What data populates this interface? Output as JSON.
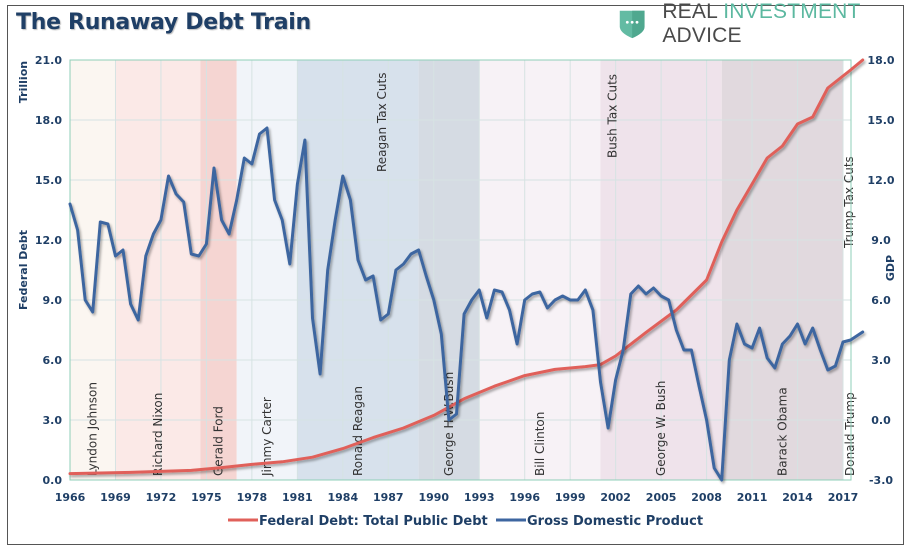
{
  "header": {
    "title": "The Runaway Debt Train",
    "brand": {
      "part1": "REAL ",
      "part2": "INVESTMENT",
      "part3": " ADVICE",
      "icon": "shield-icon",
      "color": "#5cb8a0"
    }
  },
  "chart_data": {
    "type": "line",
    "title": "The Runaway Debt Train",
    "xlabel": "",
    "ylabel_left": "Federal Debt",
    "ylabel_left_unit": "Trillion",
    "ylabel_right": "GDP",
    "xlim": [
      1966,
      2018.5
    ],
    "ylim_left": [
      0,
      21
    ],
    "ylim_right": [
      -3,
      18
    ],
    "x_ticks": [
      "1966",
      "1969",
      "1972",
      "1975",
      "1978",
      "1981",
      "1984",
      "1987",
      "1990",
      "1993",
      "1996",
      "1999",
      "2002",
      "2005",
      "2008",
      "2011",
      "2014",
      "2017"
    ],
    "y_ticks_left": [
      "0.0",
      "3.0",
      "6.0",
      "9.0",
      "12.0",
      "15.0",
      "18.0",
      "21.0"
    ],
    "y_ticks_right": [
      "-3.0",
      "0.0",
      "3.0",
      "6.0",
      "9.0",
      "12.0",
      "15.0",
      "18.0"
    ],
    "grid": true,
    "legend_position": "bottom",
    "series": [
      {
        "name": "Federal Debt: Total Public Debt",
        "axis": "left",
        "color": "#e0605a",
        "x": [
          1966,
          1968,
          1970,
          1972,
          1974,
          1976,
          1978,
          1980,
          1982,
          1984,
          1986,
          1988,
          1990,
          1992,
          1994,
          1996,
          1998,
          2000,
          2001,
          2002,
          2004,
          2006,
          2008,
          2009,
          2010,
          2011,
          2012,
          2013,
          2014,
          2015,
          2016,
          2017,
          2017.5,
          2018.3
        ],
        "values": [
          0.32,
          0.35,
          0.38,
          0.43,
          0.48,
          0.62,
          0.78,
          0.91,
          1.14,
          1.57,
          2.12,
          2.6,
          3.23,
          4.06,
          4.69,
          5.22,
          5.53,
          5.67,
          5.77,
          6.2,
          7.38,
          8.5,
          10.0,
          11.9,
          13.5,
          14.8,
          16.1,
          16.7,
          17.8,
          18.15,
          19.6,
          20.2,
          20.5,
          21.0
        ]
      },
      {
        "name": "Gross Domestic Product",
        "axis": "right",
        "color": "#3e66a0",
        "x": [
          1966,
          1966.5,
          1967,
          1967.5,
          1968,
          1968.5,
          1969,
          1969.5,
          1970,
          1970.5,
          1971,
          1971.5,
          1972,
          1972.5,
          1973,
          1973.5,
          1974,
          1974.5,
          1975,
          1975.5,
          1976,
          1976.5,
          1977,
          1977.5,
          1978,
          1978.5,
          1979,
          1979.5,
          1980,
          1980.5,
          1981,
          1981.5,
          1982,
          1982.5,
          1983,
          1983.5,
          1984,
          1984.5,
          1985,
          1985.5,
          1986,
          1986.5,
          1987,
          1987.5,
          1988,
          1988.5,
          1989,
          1989.5,
          1990,
          1990.5,
          1991,
          1991.5,
          1992,
          1992.5,
          1993,
          1993.5,
          1994,
          1994.5,
          1995,
          1995.5,
          1996,
          1996.5,
          1997,
          1997.5,
          1998,
          1998.5,
          1999,
          1999.5,
          2000,
          2000.5,
          2001,
          2001.5,
          2002,
          2002.5,
          2003,
          2003.5,
          2004,
          2004.5,
          2005,
          2005.5,
          2006,
          2006.5,
          2007,
          2007.5,
          2008,
          2008.5,
          2009,
          2009.5,
          2010,
          2010.5,
          2011,
          2011.5,
          2012,
          2012.5,
          2013,
          2013.5,
          2014,
          2014.5,
          2015,
          2015.5,
          2016,
          2016.5,
          2017,
          2017.5,
          2018.3
        ],
        "values": [
          10.8,
          9.5,
          6.0,
          5.4,
          9.9,
          9.8,
          8.2,
          8.5,
          5.8,
          5.0,
          8.2,
          9.3,
          10.0,
          12.2,
          11.3,
          10.9,
          8.3,
          8.2,
          8.8,
          12.6,
          10.0,
          9.3,
          11.0,
          13.1,
          12.8,
          14.3,
          14.6,
          11.0,
          10.0,
          7.8,
          11.8,
          14.0,
          5.1,
          2.3,
          7.5,
          10.0,
          12.2,
          11.0,
          8.0,
          7.0,
          7.2,
          5.0,
          5.3,
          7.5,
          7.8,
          8.3,
          8.5,
          7.2,
          6.0,
          4.3,
          0.0,
          0.3,
          5.3,
          6.0,
          6.5,
          5.1,
          6.5,
          6.4,
          5.5,
          3.8,
          6.0,
          6.3,
          6.4,
          5.6,
          6.0,
          6.2,
          6.0,
          6.0,
          6.5,
          5.5,
          1.9,
          -0.4,
          2.0,
          3.5,
          6.3,
          6.7,
          6.3,
          6.6,
          6.2,
          6.0,
          4.5,
          3.5,
          3.5,
          1.7,
          0.0,
          -2.4,
          -3.0,
          3.0,
          4.8,
          3.8,
          3.6,
          4.6,
          3.1,
          2.6,
          3.8,
          4.2,
          4.8,
          3.8,
          4.6,
          3.5,
          2.5,
          2.7,
          3.9,
          4.0,
          4.4
        ]
      }
    ],
    "eras": [
      {
        "name": "Lyndon Johnson",
        "start": 1966,
        "end": 1969,
        "color": "#fbf6f1"
      },
      {
        "name": "Richard Nixon",
        "start": 1969,
        "end": 1974.6,
        "color": "#fbe9e7"
      },
      {
        "name": "Gerald Ford",
        "start": 1974.6,
        "end": 1977,
        "color": "#f5d5d2"
      },
      {
        "name": "Jimmy Carter",
        "start": 1977,
        "end": 1981,
        "color": "#f1f4f9"
      },
      {
        "name": "Ronald Reagan",
        "start": 1981,
        "end": 1989,
        "color": "#d7e1ec"
      },
      {
        "name": "George H.W.Bush",
        "start": 1989,
        "end": 1993,
        "color": "#d5dbe3"
      },
      {
        "name": "Bill Clinton",
        "start": 1993,
        "end": 2001,
        "color": "#f7f2f6"
      },
      {
        "name": "George W. Bush",
        "start": 2001,
        "end": 2009,
        "color": "#efe3eb"
      },
      {
        "name": "Barack Obama",
        "start": 2009,
        "end": 2017,
        "color": "#e1d9de"
      },
      {
        "name": "Donald Trump",
        "start": 2017,
        "end": 2018.5,
        "color": "#ffffff"
      }
    ],
    "annotations": [
      {
        "text": "Reagan Tax Cuts",
        "x": 1986.6
      },
      {
        "text": "Bush Tax Cuts",
        "x": 2001.8
      },
      {
        "text": "Trump Tax Cuts",
        "x": 2018.0
      }
    ]
  }
}
